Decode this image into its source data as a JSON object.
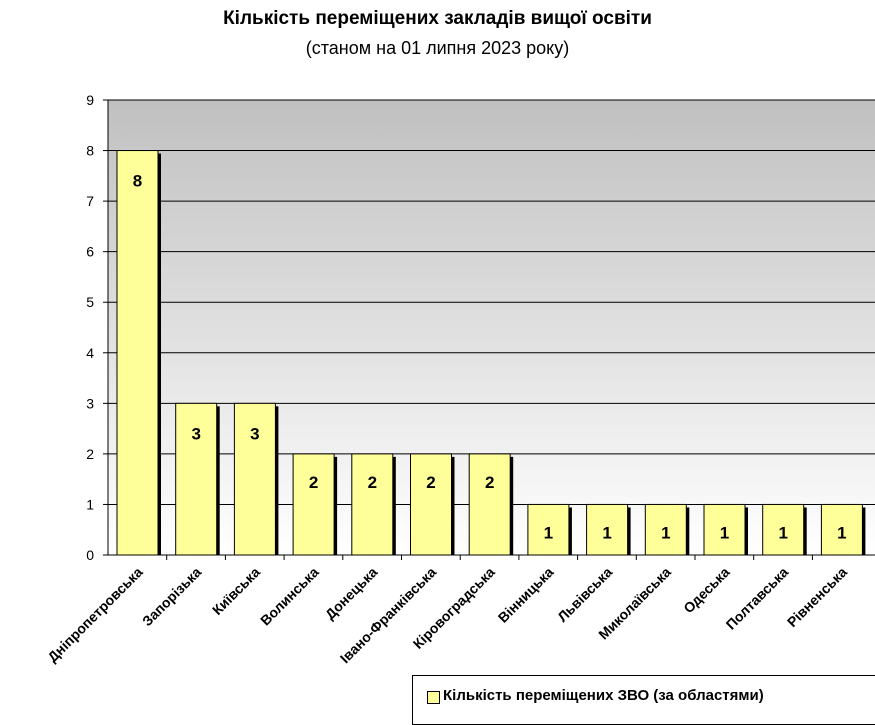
{
  "chart_data": {
    "type": "bar",
    "title": "Кількість переміщених закладів вищої освіти",
    "subtitle": "(станом на 01 липня 2023 року)",
    "categories": [
      "Дніпропетровська",
      "Запорізька",
      "Київська",
      "Волинська",
      "Донецька",
      "Івано-Франківська",
      "Кіровоградська",
      "Вінницька",
      "Львівська",
      "Миколаївська",
      "Одеська",
      "Полтавська",
      "Рівненська"
    ],
    "series": [
      {
        "name": "Кількість переміщених ЗВО (за областями)",
        "values": [
          8,
          3,
          3,
          2,
          2,
          2,
          2,
          1,
          1,
          1,
          1,
          1,
          1
        ]
      }
    ],
    "ylim": [
      0,
      9
    ],
    "yticks": [
      "0",
      "1",
      "2",
      "3",
      "4",
      "5",
      "6",
      "7",
      "8",
      "9"
    ],
    "grid": true,
    "legend": "bottom-right",
    "bar_color": "#ffff99",
    "bar_shadow_color": "#000000",
    "plot_gradient": [
      "#c0c0c0",
      "#ffffff"
    ],
    "gridline_color": "#000000"
  }
}
